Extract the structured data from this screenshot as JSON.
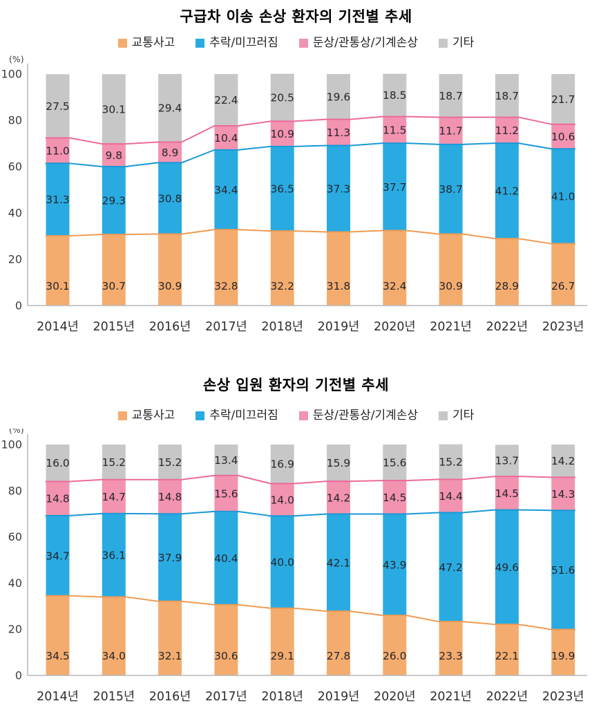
{
  "page": {
    "background": "#ffffff",
    "text_color": "#222222"
  },
  "chart_data": [
    {
      "type": "bar",
      "stacked": true,
      "title": "구급차 이송 손상 환자의 기전별 추세",
      "unit_label": "(%)",
      "categories": [
        "2014년",
        "2015년",
        "2016년",
        "2017년",
        "2018년",
        "2019년",
        "2020년",
        "2021년",
        "2022년",
        "2023년"
      ],
      "series": [
        {
          "name": "교통사고",
          "color": "#F4AC6E",
          "line_color": "#F09A52",
          "values": [
            30.1,
            30.7,
            30.9,
            32.8,
            32.2,
            31.8,
            32.4,
            30.9,
            28.9,
            26.7
          ]
        },
        {
          "name": "추락/미끄러짐",
          "color": "#29ABE2",
          "line_color": "#1899D6",
          "values": [
            31.3,
            29.3,
            30.8,
            34.4,
            36.5,
            37.3,
            37.7,
            38.7,
            41.2,
            41.0
          ]
        },
        {
          "name": "둔상/관통상/기계손상",
          "color": "#F293AF",
          "line_color": "#EB6A9A",
          "values": [
            11.0,
            9.8,
            8.9,
            10.4,
            10.9,
            11.3,
            11.5,
            11.7,
            11.2,
            10.6
          ]
        },
        {
          "name": "기타",
          "color": "#C7C7C7",
          "line_color": null,
          "values": [
            27.5,
            30.1,
            29.4,
            22.4,
            20.5,
            19.6,
            18.5,
            18.7,
            18.7,
            21.7
          ]
        }
      ],
      "ylim": [
        0,
        100
      ],
      "yticks": [
        0,
        20,
        40,
        60,
        80,
        100
      ],
      "legend_position": "top",
      "grid": false
    },
    {
      "type": "bar",
      "stacked": true,
      "title": "손상 입원 환자의 기전별 추세",
      "unit_label": "(%)",
      "categories": [
        "2014년",
        "2015년",
        "2016년",
        "2017년",
        "2018년",
        "2019년",
        "2020년",
        "2021년",
        "2022년",
        "2023년"
      ],
      "series": [
        {
          "name": "교통사고",
          "color": "#F4AC6E",
          "line_color": "#F09A52",
          "values": [
            34.5,
            34.0,
            32.1,
            30.6,
            29.1,
            27.8,
            26.0,
            23.3,
            22.1,
            19.9
          ]
        },
        {
          "name": "추락/미끄러짐",
          "color": "#29ABE2",
          "line_color": "#1899D6",
          "values": [
            34.7,
            36.1,
            37.9,
            40.4,
            40.0,
            42.1,
            43.9,
            47.2,
            49.6,
            51.6
          ]
        },
        {
          "name": "둔상/관통상/기계손상",
          "color": "#F293AF",
          "line_color": "#EB6A9A",
          "values": [
            14.8,
            14.7,
            14.8,
            15.6,
            14.0,
            14.2,
            14.5,
            14.4,
            14.5,
            14.3
          ]
        },
        {
          "name": "기타",
          "color": "#C7C7C7",
          "line_color": null,
          "values": [
            16.0,
            15.2,
            15.2,
            13.4,
            16.9,
            15.9,
            15.6,
            15.2,
            13.7,
            14.2
          ]
        }
      ],
      "ylim": [
        0,
        100
      ],
      "yticks": [
        0,
        20,
        40,
        60,
        80,
        100
      ],
      "legend_position": "top",
      "grid": false
    }
  ],
  "style": {
    "axis_line_color": "#A6A6A6",
    "baseline_color": "#B5B5B5",
    "tick_label_color": "#3C3C3C",
    "value_label_color": "#26262C",
    "xlabel_color": "#2E2E2E"
  }
}
